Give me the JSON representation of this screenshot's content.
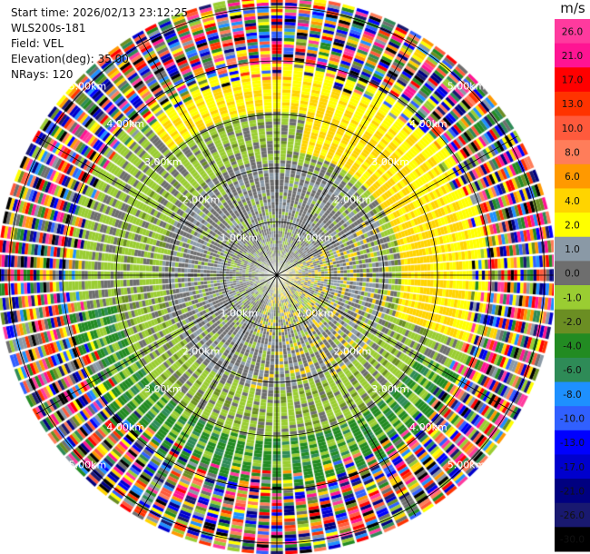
{
  "header": {
    "start_time": "Start time: 2026/02/13 23:12:25",
    "device": "WLS200s-181",
    "field": "Field: VEL",
    "elevation": "Elevation(deg): 35.00",
    "nrays": "NRays: 120"
  },
  "colorbar": {
    "unit": "m/s",
    "levels": [
      {
        "label": "26.0",
        "color": "#ff3a9e"
      },
      {
        "label": "21.0",
        "color": "#ff1493"
      },
      {
        "label": "17.0",
        "color": "#ff0000"
      },
      {
        "label": "13.0",
        "color": "#ff3300"
      },
      {
        "label": "10.0",
        "color": "#ff5a3c"
      },
      {
        "label": "8.0",
        "color": "#ff7d5a"
      },
      {
        "label": "6.0",
        "color": "#ff9900"
      },
      {
        "label": "4.0",
        "color": "#ffd400"
      },
      {
        "label": "2.0",
        "color": "#ffff00"
      },
      {
        "label": "1.0",
        "color": "#8a99a6"
      },
      {
        "label": "0.0",
        "color": "#6e6e6e"
      },
      {
        "label": "-1.0",
        "color": "#9acd32"
      },
      {
        "label": "-2.0",
        "color": "#6b8e23"
      },
      {
        "label": "-4.0",
        "color": "#228b22"
      },
      {
        "label": "-6.0",
        "color": "#2e8b57"
      },
      {
        "label": "-8.0",
        "color": "#1e90ff"
      },
      {
        "label": "-10.0",
        "color": "#3060ff"
      },
      {
        "label": "-13.0",
        "color": "#0000ff"
      },
      {
        "label": "-17.0",
        "color": "#0000cd"
      },
      {
        "label": "-21.0",
        "color": "#000080"
      },
      {
        "label": "-26.0",
        "color": "#191970"
      },
      {
        "label": "-30.0",
        "color": "#000000"
      }
    ]
  },
  "chart_data": {
    "type": "heatmap",
    "projection": "polar",
    "field": "VEL",
    "units": "m/s",
    "rays": 120,
    "range_rings_km": [
      1.0,
      2.0,
      3.0,
      4.0,
      5.0
    ],
    "range_ring_labels": [
      "1.00km",
      "2.00km",
      "3.00km",
      "4.00km",
      "5.00km"
    ],
    "radial_lines_deg": [
      0,
      30,
      60,
      90,
      120,
      150,
      180,
      210,
      240,
      270,
      300,
      330
    ],
    "velocity_bands": [
      {
        "range_km": [
          0.0,
          1.0
        ],
        "dominant": "0.0",
        "note": "mixed gray / light green near radar, yellow patches east"
      },
      {
        "range_km": [
          1.0,
          2.0
        ],
        "dominant": "0.0",
        "note": "gray in north, green west, yellow scattered"
      },
      {
        "range_km": [
          2.0,
          3.0
        ],
        "dominant": "-1.0",
        "note": "light green ring; yellow/gold arc in northeast"
      },
      {
        "range_km": [
          3.0,
          3.6
        ],
        "dominant": "2.0",
        "note": "yellow arc north-northeast; green/dark green south"
      },
      {
        "range_km": [
          3.6,
          5.2
        ],
        "dominant": "mixed",
        "note": "noisy, all colors"
      }
    ],
    "colorbar_ticks": [
      "26.0",
      "21.0",
      "17.0",
      "13.0",
      "10.0",
      "8.0",
      "6.0",
      "4.0",
      "2.0",
      "1.0",
      "0.0",
      "-1.0",
      "-2.0",
      "-4.0",
      "-6.0",
      "-8.0",
      "-10.0",
      "-13.0",
      "-17.0",
      "-21.0",
      "-26.0",
      "-30.0"
    ]
  }
}
